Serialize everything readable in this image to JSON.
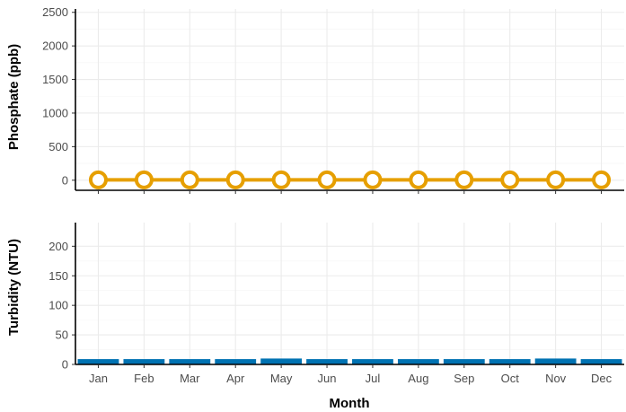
{
  "chart_data": [
    {
      "type": "line",
      "ylabel": "Phosphate (ppb)",
      "categories": [
        "Jan",
        "Feb",
        "Mar",
        "Apr",
        "May",
        "Jun",
        "Jul",
        "Aug",
        "Sep",
        "Oct",
        "Nov",
        "Dec"
      ],
      "values": [
        5,
        5,
        5,
        5,
        5,
        5,
        5,
        5,
        5,
        5,
        5,
        5
      ],
      "ylim": [
        -150,
        2550
      ],
      "yticks": [
        0,
        500,
        1000,
        1500,
        2000,
        2500
      ],
      "color": "#E69F00",
      "grid": true
    },
    {
      "type": "bar",
      "xlabel": "Month",
      "ylabel": "Turbidity (NTU)",
      "categories": [
        "Jan",
        "Feb",
        "Mar",
        "Apr",
        "May",
        "Jun",
        "Jul",
        "Aug",
        "Sep",
        "Oct",
        "Nov",
        "Dec"
      ],
      "values": [
        9,
        9,
        9,
        9,
        10,
        9,
        9,
        9,
        9,
        9,
        10,
        9
      ],
      "ylim": [
        0,
        240
      ],
      "yticks": [
        0,
        50,
        100,
        150,
        200
      ],
      "color": "#0072B2",
      "grid": true
    }
  ]
}
